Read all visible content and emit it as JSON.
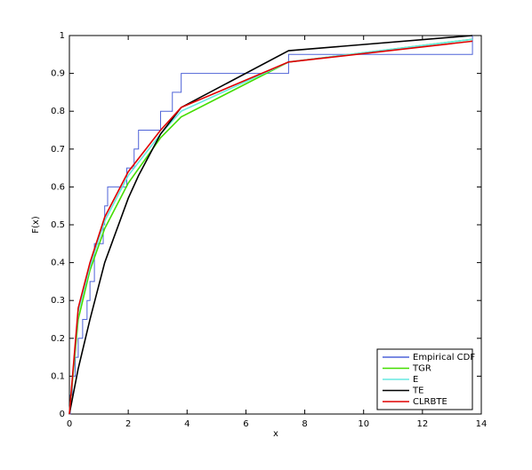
{
  "chart_data": {
    "type": "line",
    "xlabel": "x",
    "ylabel": "F(x)",
    "xlim": [
      0,
      14
    ],
    "ylim": [
      0,
      1
    ],
    "xticks": [
      0,
      2,
      4,
      6,
      8,
      10,
      12,
      14
    ],
    "yticks": [
      0,
      0.1,
      0.2,
      0.3,
      0.4,
      0.5,
      0.6,
      0.7,
      0.8,
      0.9,
      1
    ],
    "legend": "lower right",
    "series": [
      {
        "name": "Empirical CDF",
        "color": "#4f63d8",
        "step": true,
        "x": [
          0,
          0.03,
          0.1,
          0.2,
          0.3,
          0.45,
          0.6,
          0.7,
          0.85,
          1.15,
          1.2,
          1.3,
          1.95,
          2.2,
          2.35,
          3.1,
          3.5,
          3.8,
          7.45,
          13.7
        ],
        "values": [
          0,
          0.05,
          0.1,
          0.15,
          0.2,
          0.25,
          0.3,
          0.35,
          0.45,
          0.5,
          0.55,
          0.6,
          0.65,
          0.7,
          0.75,
          0.8,
          0.85,
          0.9,
          0.95,
          1
        ]
      },
      {
        "name": "TGR",
        "color": "#44dd00",
        "x": [
          0,
          0.3,
          0.7,
          1.2,
          2,
          3.1,
          3.8,
          7.45,
          13.7
        ],
        "values": [
          0,
          0.25,
          0.38,
          0.49,
          0.61,
          0.73,
          0.785,
          0.93,
          0.99
        ]
      },
      {
        "name": "E",
        "color": "#66e8e0",
        "x": [
          0,
          0.3,
          0.7,
          1.2,
          2,
          3.1,
          3.8,
          7.45,
          13.7
        ],
        "values": [
          0,
          0.27,
          0.39,
          0.51,
          0.63,
          0.74,
          0.8,
          0.93,
          0.99
        ]
      },
      {
        "name": "TE",
        "color": "#000000",
        "x": [
          0,
          0.3,
          0.7,
          1.2,
          2,
          2.35,
          3.1,
          3.8,
          7.45,
          13.7
        ],
        "values": [
          0,
          0.12,
          0.25,
          0.4,
          0.57,
          0.63,
          0.74,
          0.81,
          0.96,
          1.0
        ]
      },
      {
        "name": "CLRBTE",
        "color": "#e00000",
        "x": [
          0,
          0.3,
          0.7,
          1.2,
          2,
          3.1,
          3.8,
          7.45,
          13.7
        ],
        "values": [
          0,
          0.28,
          0.4,
          0.52,
          0.64,
          0.75,
          0.81,
          0.93,
          0.985
        ]
      }
    ]
  }
}
